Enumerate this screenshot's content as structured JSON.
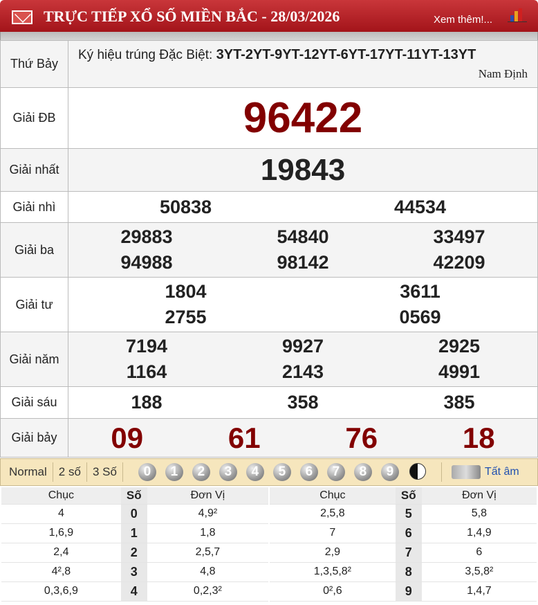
{
  "header": {
    "title": "TRỰC TIẾP XỔ SỐ MIỀN BẮC - 28/03/2026",
    "more_link": "Xem thêm!...",
    "icons": {
      "left": "mail-icon",
      "right": "bar-chart-icon"
    }
  },
  "day": "Thứ Bảy",
  "special_code_label": "Ký hiệu trúng Đặc Biệt:",
  "special_codes": "3YT-2YT-9YT-12YT-6YT-17YT-11YT-13YT",
  "province": "Nam Định",
  "prizes": [
    {
      "label": "Giải ĐB",
      "numbers": [
        "96422"
      ]
    },
    {
      "label": "Giải nhất",
      "numbers": [
        "19843"
      ]
    },
    {
      "label": "Giải nhì",
      "numbers": [
        "50838",
        "44534"
      ]
    },
    {
      "label": "Giải ba",
      "numbers": [
        "29883",
        "54840",
        "33497",
        "94988",
        "98142",
        "42209"
      ]
    },
    {
      "label": "Giải tư",
      "numbers": [
        "1804",
        "3611",
        "2755",
        "0569"
      ]
    },
    {
      "label": "Giải năm",
      "numbers": [
        "7194",
        "9927",
        "2925",
        "1164",
        "2143",
        "4991"
      ]
    },
    {
      "label": "Giải sáu",
      "numbers": [
        "188",
        "358",
        "385"
      ]
    },
    {
      "label": "Giải bảy",
      "numbers": [
        "09",
        "61",
        "76",
        "18"
      ]
    }
  ],
  "toolbar": {
    "options": [
      "Normal",
      "2 số",
      "3 Số"
    ],
    "balls": [
      "0",
      "1",
      "2",
      "3",
      "4",
      "5",
      "6",
      "7",
      "8",
      "9"
    ],
    "mute_label": "Tất âm"
  },
  "loto": {
    "headers": [
      "Chục",
      "Số",
      "Đơn Vị"
    ],
    "rows": [
      {
        "chuc": "4",
        "so": "0",
        "donvi": "4,9²"
      },
      {
        "chuc": "1,6,9",
        "so": "1",
        "donvi": "1,8"
      },
      {
        "chuc": "2,4",
        "so": "2",
        "donvi": "2,5,7"
      },
      {
        "chuc": "4²,8",
        "so": "3",
        "donvi": "4,8"
      },
      {
        "chuc": "0,3,6,9",
        "so": "4",
        "donvi": "0,2,3²"
      },
      {
        "chuc": "2,5,8",
        "so": "5",
        "donvi": "5,8"
      },
      {
        "chuc": "7",
        "so": "6",
        "donvi": "1,4,9"
      },
      {
        "chuc": "2,9",
        "so": "7",
        "donvi": "6"
      },
      {
        "chuc": "1,3,5,8²",
        "so": "8",
        "donvi": "3,5,8²"
      },
      {
        "chuc": "0²,6",
        "so": "9",
        "donvi": "1,4,7"
      }
    ]
  },
  "colors": {
    "header": "#b3222a",
    "special": "#820000",
    "toolbar": "#f6e6bd",
    "link": "#2050b0"
  }
}
